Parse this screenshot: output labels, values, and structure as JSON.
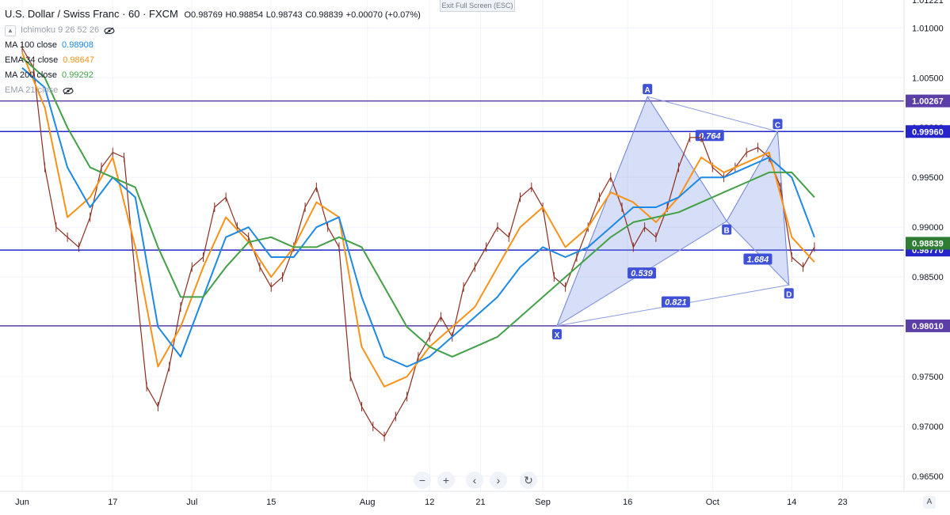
{
  "header": {
    "symbol": "U.S. Dollar / Swiss Franc · 60 · FXCM",
    "open": "O0.98769",
    "high": "H0.98854",
    "low": "L0.98743",
    "close": "C0.98839",
    "change": "+0.00070 (+0.07%)"
  },
  "indicators": [
    {
      "label": "Ichimoku 9 26 52 26",
      "value": "",
      "color": "#9aa0ab",
      "hidden": true
    },
    {
      "label": "MA 100 close",
      "value": "0.98908",
      "color": "#1e88e5",
      "hidden": false
    },
    {
      "label": "EMA 34 close",
      "value": "0.98647",
      "color": "#f7931a",
      "hidden": false
    },
    {
      "label": "MA 200 close",
      "value": "0.99292",
      "color": "#43a047",
      "hidden": false
    },
    {
      "label": "EMA 21 close",
      "value": "",
      "color": "#9aa0ab",
      "hidden": true
    }
  ],
  "toolbar": {
    "exit_fullscreen": "Exit Full Screen (ESC)",
    "zoom_out": "−",
    "zoom_in": "+",
    "scroll_left": "‹",
    "scroll_right": "›",
    "reset": "↻",
    "auto_scale": "A"
  },
  "chart_data": {
    "type": "line",
    "ylim": [
      0.9635,
      1.0128
    ],
    "y_ticks": [
      "1.01000",
      "1.00500",
      "1.00000",
      "0.99500",
      "0.99000",
      "0.98500",
      "0.98000",
      "0.97500",
      "0.97000",
      "0.96500"
    ],
    "y_tick_values": [
      1.01,
      1.005,
      1.0,
      0.995,
      0.99,
      0.985,
      0.98,
      0.975,
      0.97,
      0.965
    ],
    "x_ticks": [
      "Jun",
      "17",
      "Jul",
      "15",
      "Aug",
      "12",
      "21",
      "Sep",
      "16",
      "Oct",
      "14",
      "23"
    ],
    "x_tick_days": [
      0,
      16,
      30,
      44,
      61,
      72,
      81,
      92,
      107,
      122,
      136,
      145
    ],
    "x_range_days": [
      0,
      148
    ],
    "horizontal_levels": [
      {
        "value": 1.00267,
        "label": "1.00267",
        "color": "#5b3fa6"
      },
      {
        "value": 0.9996,
        "label": "0.99960",
        "color": "#2525c9"
      },
      {
        "value": 0.9877,
        "label": "0.98770",
        "color": "#2525c9"
      },
      {
        "value": 0.9801,
        "label": "0.98010",
        "color": "#5b3fa6"
      }
    ],
    "price_badge": {
      "value": 0.98839,
      "label": "0.98839",
      "color": "#2e7d32"
    },
    "top_tick_partial": "1.01221",
    "pattern": {
      "points": [
        {
          "name": "X",
          "day": 94.5,
          "value": 0.9801
        },
        {
          "name": "A",
          "day": 110.5,
          "value": 1.0031
        },
        {
          "name": "B",
          "day": 124.5,
          "value": 0.9906
        },
        {
          "name": "C",
          "day": 133.5,
          "value": 0.9996
        },
        {
          "name": "D",
          "day": 135.5,
          "value": 0.9842
        }
      ],
      "ratios": [
        {
          "label": "0.539",
          "day": 109.5,
          "value": 0.9854
        },
        {
          "label": "0.764",
          "day": 121.5,
          "value": 0.9992
        },
        {
          "label": "1.684",
          "day": 130,
          "value": 0.9868
        },
        {
          "label": "0.821",
          "day": 115.5,
          "value": 0.9825
        }
      ]
    },
    "series": [
      {
        "name": "USD/CHF",
        "color": "#8b2c1f",
        "x": [
          0,
          2,
          4,
          6,
          8,
          10,
          12,
          14,
          16,
          18,
          20,
          22,
          24,
          26,
          28,
          30,
          32,
          34,
          36,
          38,
          40,
          42,
          44,
          46,
          48,
          50,
          52,
          54,
          56,
          58,
          60,
          62,
          64,
          66,
          68,
          70,
          72,
          74,
          76,
          78,
          80,
          82,
          84,
          86,
          88,
          90,
          92,
          94,
          96,
          98,
          100,
          102,
          104,
          106,
          108,
          110,
          112,
          114,
          116,
          118,
          120,
          122,
          124,
          126,
          128,
          130,
          132,
          134,
          136,
          138,
          140
        ],
        "values": [
          1.008,
          1.006,
          0.996,
          0.99,
          0.989,
          0.988,
          0.991,
          0.996,
          0.9975,
          0.997,
          0.985,
          0.974,
          0.972,
          0.976,
          0.982,
          0.986,
          0.987,
          0.992,
          0.993,
          0.99,
          0.989,
          0.986,
          0.984,
          0.985,
          0.988,
          0.992,
          0.994,
          0.99,
          0.988,
          0.975,
          0.972,
          0.97,
          0.969,
          0.971,
          0.973,
          0.977,
          0.979,
          0.981,
          0.979,
          0.984,
          0.986,
          0.988,
          0.99,
          0.989,
          0.993,
          0.994,
          0.992,
          0.985,
          0.984,
          0.987,
          0.99,
          0.993,
          0.995,
          0.992,
          0.988,
          0.99,
          0.989,
          0.992,
          0.996,
          0.999,
          0.999,
          0.996,
          0.995,
          0.996,
          0.9975,
          0.998,
          0.997,
          0.994,
          0.987,
          0.986,
          0.988
        ]
      },
      {
        "name": "EMA 34 close",
        "color": "#f7931a",
        "x": [
          0,
          4,
          8,
          12,
          16,
          20,
          24,
          28,
          32,
          36,
          40,
          44,
          48,
          52,
          56,
          60,
          64,
          68,
          72,
          76,
          80,
          84,
          88,
          92,
          96,
          100,
          104,
          108,
          112,
          116,
          120,
          124,
          128,
          132,
          136,
          140
        ],
        "values": [
          1.0075,
          1.002,
          0.991,
          0.993,
          0.997,
          0.988,
          0.976,
          0.98,
          0.986,
          0.991,
          0.9885,
          0.985,
          0.988,
          0.9925,
          0.991,
          0.978,
          0.974,
          0.975,
          0.978,
          0.98,
          0.982,
          0.986,
          0.99,
          0.992,
          0.988,
          0.99,
          0.9935,
          0.9925,
          0.9905,
          0.993,
          0.997,
          0.9955,
          0.9965,
          0.9975,
          0.989,
          0.9865
        ]
      },
      {
        "name": "MA 100 close",
        "color": "#1e88e5",
        "x": [
          0,
          4,
          8,
          12,
          16,
          20,
          24,
          28,
          32,
          36,
          40,
          44,
          48,
          52,
          56,
          60,
          64,
          68,
          72,
          76,
          80,
          84,
          88,
          92,
          96,
          100,
          104,
          108,
          112,
          116,
          120,
          124,
          128,
          132,
          136,
          140
        ],
        "values": [
          1.006,
          1.004,
          0.996,
          0.992,
          0.995,
          0.993,
          0.98,
          0.977,
          0.983,
          0.989,
          0.99,
          0.987,
          0.987,
          0.99,
          0.991,
          0.983,
          0.977,
          0.976,
          0.977,
          0.979,
          0.981,
          0.983,
          0.986,
          0.988,
          0.987,
          0.988,
          0.99,
          0.992,
          0.992,
          0.993,
          0.995,
          0.995,
          0.996,
          0.997,
          0.995,
          0.989
        ]
      },
      {
        "name": "MA 200 close",
        "color": "#43a047",
        "x": [
          0,
          4,
          8,
          12,
          16,
          20,
          24,
          28,
          32,
          36,
          40,
          44,
          48,
          52,
          56,
          60,
          64,
          68,
          72,
          76,
          80,
          84,
          88,
          92,
          96,
          100,
          104,
          108,
          112,
          116,
          120,
          124,
          128,
          132,
          136,
          140
        ],
        "values": [
          1.007,
          1.005,
          1.0,
          0.996,
          0.995,
          0.994,
          0.988,
          0.983,
          0.983,
          0.986,
          0.9885,
          0.989,
          0.988,
          0.988,
          0.989,
          0.988,
          0.984,
          0.98,
          0.978,
          0.977,
          0.978,
          0.979,
          0.981,
          0.983,
          0.985,
          0.987,
          0.989,
          0.9905,
          0.991,
          0.9915,
          0.9925,
          0.9935,
          0.9945,
          0.9955,
          0.9955,
          0.993
        ]
      }
    ]
  }
}
